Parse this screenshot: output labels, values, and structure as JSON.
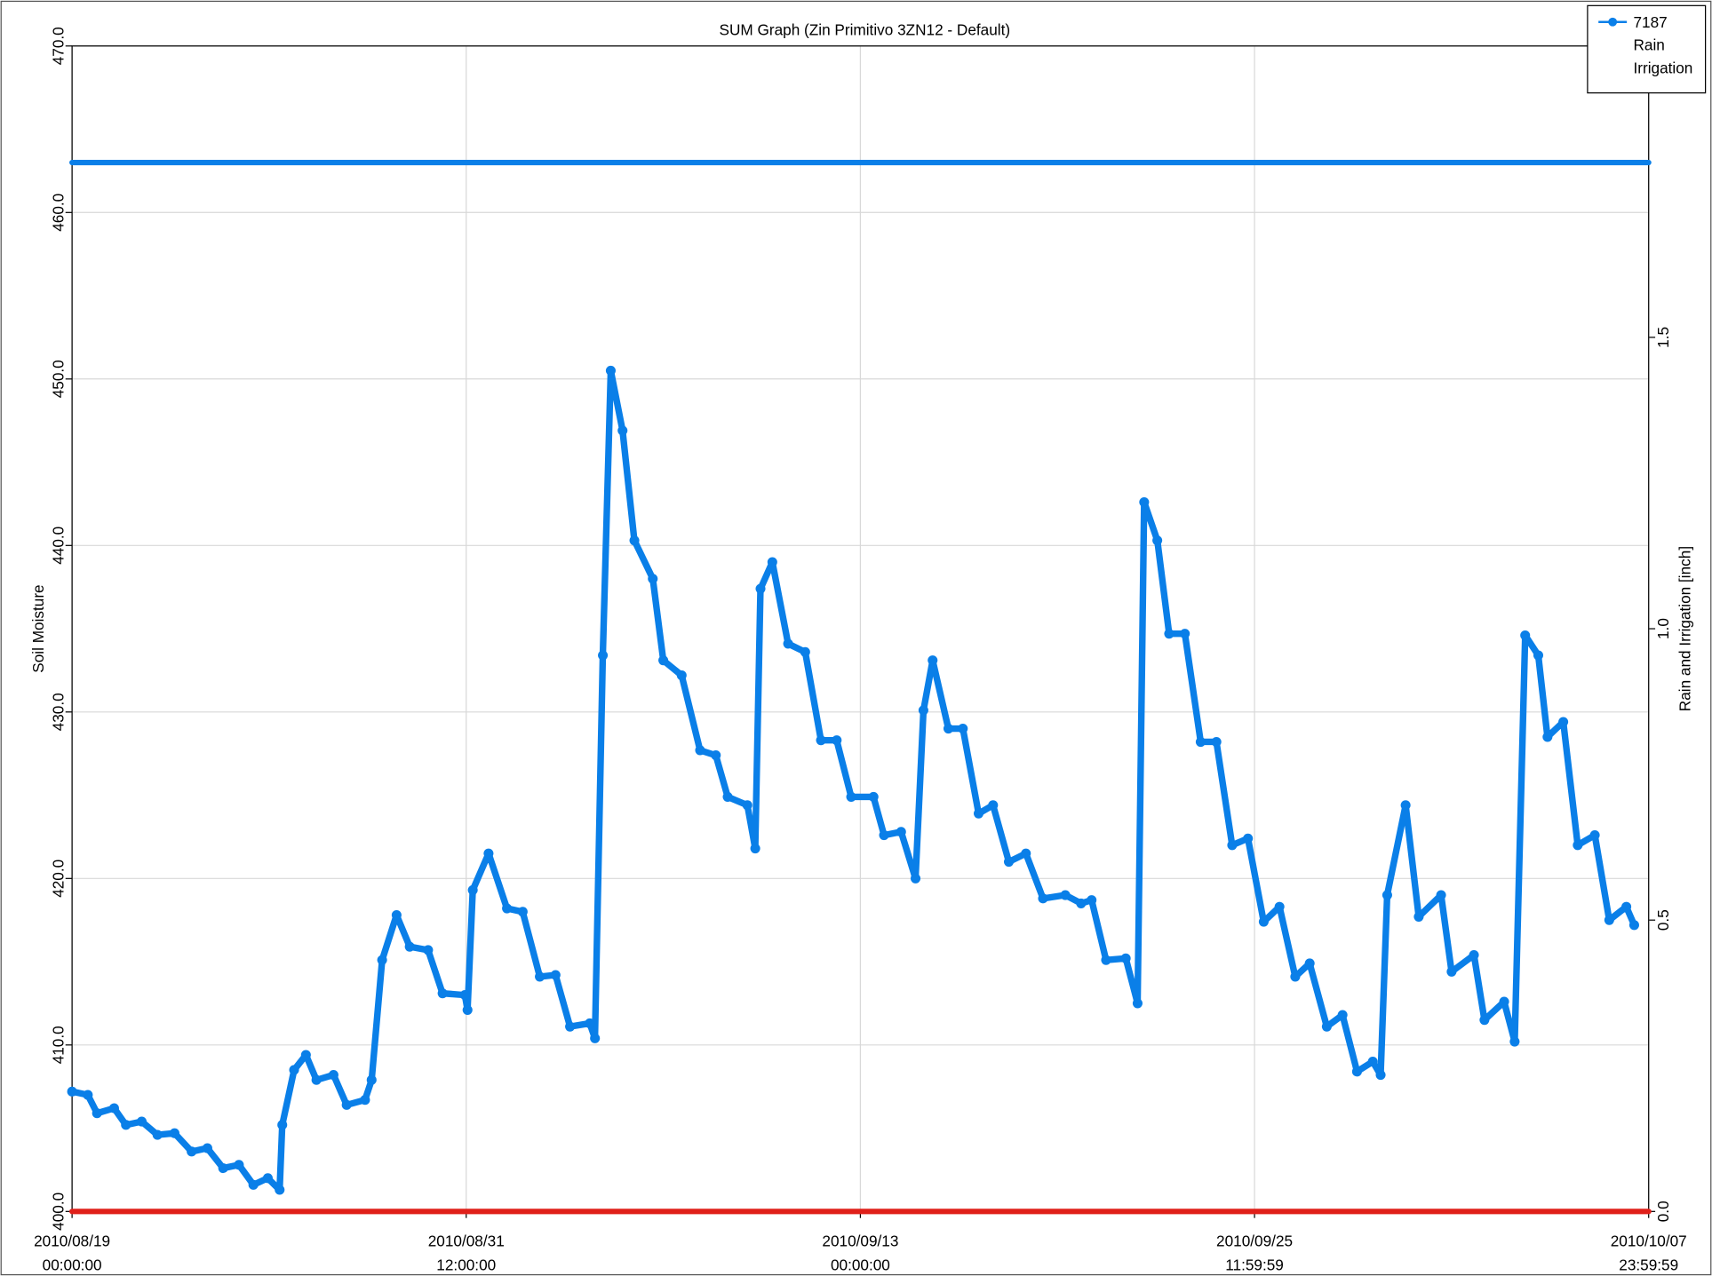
{
  "chart_data": {
    "type": "line",
    "title": "SUM Graph (Zin Primitivo 3ZN12 - Default)",
    "ylabel": "Soil Moisture",
    "y2label": "Rain and Irrigation [inch]",
    "xlim": [
      "2010/08/19 00:00:00",
      "2010/10/07 23:59:59"
    ],
    "xticks": [
      {
        "date": "2010/08/19",
        "time": "00:00:00"
      },
      {
        "date": "2010/08/31",
        "time": "12:00:00"
      },
      {
        "date": "2010/09/13",
        "time": "00:00:00"
      },
      {
        "date": "2010/09/25",
        "time": "11:59:59"
      },
      {
        "date": "2010/10/07",
        "time": "23:59:59"
      }
    ],
    "ylim": [
      400,
      470
    ],
    "yticks": [
      {
        "value": 400,
        "label": "400.0"
      },
      {
        "value": 410,
        "label": "410.0"
      },
      {
        "value": 420,
        "label": "420.0"
      },
      {
        "value": 430,
        "label": "430.0"
      },
      {
        "value": 440,
        "label": "440.0"
      },
      {
        "value": 450,
        "label": "450.0"
      },
      {
        "value": 460,
        "label": "460.0"
      },
      {
        "value": 470,
        "label": "470.0"
      }
    ],
    "y2lim": [
      0,
      2
    ],
    "y2ticks": [
      {
        "value": 0,
        "label": "0.0"
      },
      0.5,
      {
        "value": 1,
        "label": "1.0"
      },
      1.5
    ],
    "grid": true,
    "legend": "top-right",
    "series": [
      {
        "name": "7187",
        "color": "#0a7fe8",
        "markers": true,
        "x": [
          "2010/08/19 00:00:00",
          "2010/08/19 12:00:00",
          "2010/08/19 19:00:00",
          "2010/08/20 08:00:00",
          "2010/08/20 17:00:00",
          "2010/08/21 05:00:00",
          "2010/08/21 17:00:00",
          "2010/08/22 06:00:00",
          "2010/08/22 19:00:00",
          "2010/08/23 07:00:00",
          "2010/08/23 19:00:00",
          "2010/08/24 07:00:00",
          "2010/08/24 18:00:00",
          "2010/08/25 05:00:00",
          "2010/08/25 14:00:00",
          "2010/08/25 16:00:00",
          "2010/08/26 01:00:00",
          "2010/08/26 10:00:00",
          "2010/08/26 18:00:00",
          "2010/08/27 07:00:00",
          "2010/08/27 17:00:00",
          "2010/08/28 07:00:00",
          "2010/08/28 12:00:00",
          "2010/08/28 20:00:00",
          "2010/08/29 07:00:00",
          "2010/08/29 17:00:00",
          "2010/08/30 07:00:00",
          "2010/08/30 18:00:00",
          "2010/08/31 11:00:00",
          "2010/08/31 13:00:00",
          "2010/08/31 17:00:00",
          "2010/09/01 05:00:00",
          "2010/09/01 19:00:00",
          "2010/09/02 07:00:00",
          "2010/09/02 20:00:00",
          "2010/09/03 08:00:00",
          "2010/09/03 19:00:00",
          "2010/09/04 10:00:00",
          "2010/09/04 14:00:00",
          "2010/09/04 20:00:00",
          "2010/09/05 02:00:00",
          "2010/09/05 11:00:00",
          "2010/09/05 20:00:00",
          "2010/09/06 10:00:00",
          "2010/09/06 18:00:00",
          "2010/09/07 08:00:00",
          "2010/09/07 22:00:00",
          "2010/09/08 10:00:00",
          "2010/09/08 19:00:00",
          "2010/09/09 10:00:00",
          "2010/09/09 16:00:00",
          "2010/09/09 20:00:00",
          "2010/09/10 05:00:00",
          "2010/09/10 17:00:00",
          "2010/09/11 06:00:00",
          "2010/09/11 18:00:00",
          "2010/09/12 06:00:00",
          "2010/09/12 17:00:00",
          "2010/09/13 10:00:00",
          "2010/09/13 18:00:00",
          "2010/09/14 07:00:00",
          "2010/09/14 18:00:00",
          "2010/09/15 00:00:00",
          "2010/09/15 07:00:00",
          "2010/09/15 19:00:00",
          "2010/09/16 06:00:00",
          "2010/09/16 18:00:00",
          "2010/09/17 05:00:00",
          "2010/09/17 17:00:00",
          "2010/09/18 06:00:00",
          "2010/09/18 19:00:00",
          "2010/09/19 12:00:00",
          "2010/09/20 00:00:00",
          "2010/09/20 08:00:00",
          "2010/09/20 19:00:00",
          "2010/09/21 10:00:00",
          "2010/09/21 19:00:00",
          "2010/09/22 00:00:00",
          "2010/09/22 10:00:00",
          "2010/09/22 19:00:00",
          "2010/09/23 07:00:00",
          "2010/09/23 19:00:00",
          "2010/09/24 07:00:00",
          "2010/09/24 19:00:00",
          "2010/09/25 07:00:00",
          "2010/09/25 19:00:00",
          "2010/09/26 07:00:00",
          "2010/09/26 19:00:00",
          "2010/09/27 06:00:00",
          "2010/09/27 19:00:00",
          "2010/09/28 07:00:00",
          "2010/09/28 18:00:00",
          "2010/09/29 06:00:00",
          "2010/09/29 12:00:00",
          "2010/09/29 17:00:00",
          "2010/09/30 07:00:00",
          "2010/09/30 17:00:00",
          "2010/10/01 10:00:00",
          "2010/10/01 18:00:00",
          "2010/10/02 11:00:00",
          "2010/10/02 19:00:00",
          "2010/10/03 10:00:00",
          "2010/10/03 18:00:00",
          "2010/10/04 02:00:00",
          "2010/10/04 12:00:00",
          "2010/10/04 19:00:00",
          "2010/10/05 07:00:00",
          "2010/10/05 18:00:00",
          "2010/10/06 07:00:00",
          "2010/10/06 18:00:00",
          "2010/10/07 07:00:00",
          "2010/10/07 13:00:00"
        ],
        "values": [
          407.2,
          407.0,
          405.9,
          406.2,
          405.2,
          405.4,
          404.6,
          404.7,
          403.6,
          403.8,
          402.6,
          402.8,
          401.6,
          402.0,
          401.3,
          405.2,
          408.5,
          409.4,
          407.9,
          408.2,
          406.4,
          406.7,
          407.9,
          415.1,
          417.8,
          415.9,
          415.7,
          413.1,
          413.0,
          412.1,
          419.3,
          421.5,
          418.2,
          418.0,
          414.1,
          414.2,
          411.1,
          411.3,
          410.4,
          433.4,
          450.5,
          446.9,
          440.3,
          438.0,
          433.1,
          432.2,
          427.7,
          427.4,
          424.9,
          424.4,
          421.8,
          437.4,
          439.0,
          434.1,
          433.6,
          428.3,
          428.3,
          424.9,
          424.9,
          422.6,
          422.8,
          420.0,
          430.1,
          433.1,
          429.0,
          429.0,
          423.9,
          424.4,
          421.0,
          421.5,
          418.8,
          419.0,
          418.5,
          418.7,
          415.1,
          415.2,
          412.5,
          442.6,
          440.3,
          434.7,
          434.7,
          428.2,
          428.2,
          422.0,
          422.4,
          417.4,
          418.3,
          414.1,
          414.9,
          411.1,
          411.8,
          408.4,
          409.0,
          408.2,
          419.0,
          424.4,
          417.7,
          419.0,
          414.4,
          415.4,
          411.5,
          412.6,
          410.2,
          434.6,
          433.4,
          428.5,
          429.4,
          422.0,
          422.6,
          417.5,
          418.3,
          417.2
        ]
      },
      {
        "name": "Rain",
        "color": "#0a7fe8",
        "axis": "y2",
        "x": [
          "2010/08/19 00:00:00",
          "2010/10/07 23:59:59"
        ],
        "values": [
          1.8,
          1.8
        ]
      },
      {
        "name": "Irrigation",
        "color": "#e0201a",
        "axis": "y2",
        "x": [
          "2010/08/19 00:00:00",
          "2010/10/07 23:59:59"
        ],
        "values": [
          0,
          0
        ]
      }
    ]
  }
}
